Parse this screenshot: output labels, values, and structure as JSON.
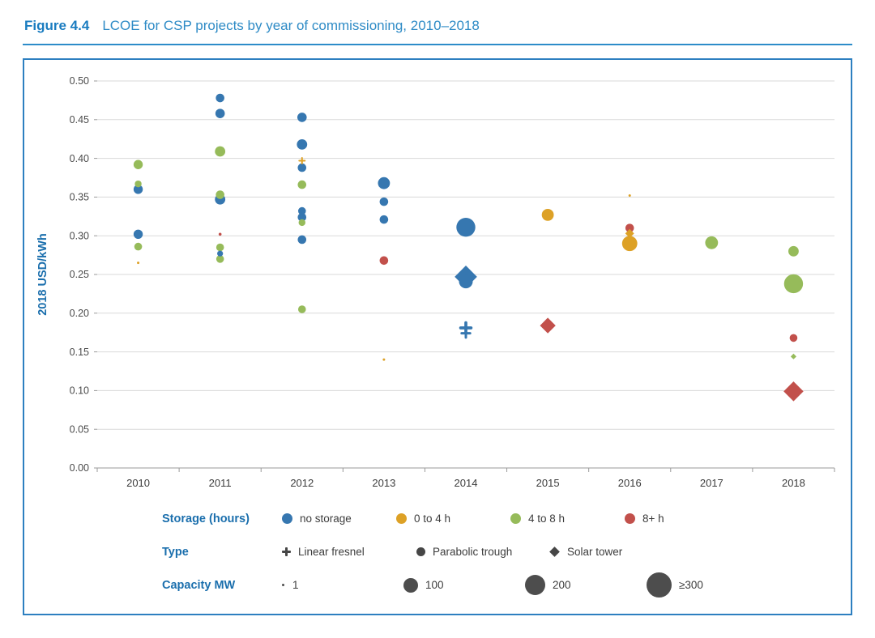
{
  "figure": {
    "label": "Figure 4.4",
    "title": "LCOE for CSP projects by year of commissioning, 2010–2018"
  },
  "colors": {
    "no_storage": "#3677b0",
    "s0to4": "#dda126",
    "s4to8": "#96bb5a",
    "s8plus": "#c2504b",
    "grid": "#dadada",
    "axis": "#9a9a9a",
    "tick_text": "#4a4a4a",
    "axis_label_blue": "#1b6fad",
    "legend_marker_gray": "#464646",
    "border_blue": "#2d7fc0"
  },
  "chart_data": {
    "type": "scatter",
    "title": "LCOE for CSP projects by year of commissioning, 2010–2018",
    "xlabel": "",
    "ylabel": "2018 USD/kWh",
    "ylim": [
      0,
      0.5
    ],
    "ytick_step": 0.05,
    "ytick_labels": [
      "0.00",
      "0.05",
      "0.10",
      "0.15",
      "0.20",
      "0.25",
      "0.30",
      "0.35",
      "0.40",
      "0.45",
      "0.50"
    ],
    "x_categories": [
      2010,
      2011,
      2012,
      2013,
      2014,
      2015,
      2016,
      2017,
      2018
    ],
    "grid": true,
    "legend_position": "bottom",
    "storage_color_keys": {
      "no storage": "no_storage",
      "0 to 4 h": "s0to4",
      "4 to 8 h": "s4to8",
      "8+ h": "s8plus"
    },
    "points": [
      {
        "year": 2010,
        "lcoe": 0.392,
        "storage": "4 to 8 h",
        "type": "parabolic trough",
        "capacity_mw": 40
      },
      {
        "year": 2010,
        "lcoe": 0.367,
        "storage": "4 to 8 h",
        "type": "parabolic trough",
        "capacity_mw": 22
      },
      {
        "year": 2010,
        "lcoe": 0.36,
        "storage": "no storage",
        "type": "parabolic trough",
        "capacity_mw": 40
      },
      {
        "year": 2010,
        "lcoe": 0.302,
        "storage": "no storage",
        "type": "parabolic trough",
        "capacity_mw": 40
      },
      {
        "year": 2010,
        "lcoe": 0.286,
        "storage": "4 to 8 h",
        "type": "parabolic trough",
        "capacity_mw": 28
      },
      {
        "year": 2010,
        "lcoe": 0.265,
        "storage": "0 to 4 h",
        "type": "parabolic trough",
        "capacity_mw": 1
      },
      {
        "year": 2011,
        "lcoe": 0.478,
        "storage": "no storage",
        "type": "parabolic trough",
        "capacity_mw": 35
      },
      {
        "year": 2011,
        "lcoe": 0.458,
        "storage": "no storage",
        "type": "parabolic trough",
        "capacity_mw": 42
      },
      {
        "year": 2011,
        "lcoe": 0.409,
        "storage": "4 to 8 h",
        "type": "parabolic trough",
        "capacity_mw": 50
      },
      {
        "year": 2011,
        "lcoe": 0.353,
        "storage": "4 to 8 h",
        "type": "parabolic trough",
        "capacity_mw": 35
      },
      {
        "year": 2011,
        "lcoe": 0.347,
        "storage": "no storage",
        "type": "parabolic trough",
        "capacity_mw": 50
      },
      {
        "year": 2011,
        "lcoe": 0.302,
        "storage": "8+ h",
        "type": "parabolic trough",
        "capacity_mw": 4
      },
      {
        "year": 2011,
        "lcoe": 0.285,
        "storage": "4 to 8 h",
        "type": "parabolic trough",
        "capacity_mw": 28
      },
      {
        "year": 2011,
        "lcoe": 0.277,
        "storage": "no storage",
        "type": "parabolic trough",
        "capacity_mw": 16
      },
      {
        "year": 2011,
        "lcoe": 0.27,
        "storage": "4 to 8 h",
        "type": "parabolic trough",
        "capacity_mw": 28
      },
      {
        "year": 2012,
        "lcoe": 0.453,
        "storage": "no storage",
        "type": "parabolic trough",
        "capacity_mw": 42
      },
      {
        "year": 2012,
        "lcoe": 0.418,
        "storage": "no storage",
        "type": "parabolic trough",
        "capacity_mw": 50
      },
      {
        "year": 2012,
        "lcoe": 0.397,
        "storage": "0 to 4 h",
        "type": "linear fresnel",
        "capacity_mw": 9
      },
      {
        "year": 2012,
        "lcoe": 0.388,
        "storage": "no storage",
        "type": "parabolic trough",
        "capacity_mw": 35
      },
      {
        "year": 2012,
        "lcoe": 0.366,
        "storage": "4 to 8 h",
        "type": "parabolic trough",
        "capacity_mw": 35
      },
      {
        "year": 2012,
        "lcoe": 0.332,
        "storage": "no storage",
        "type": "parabolic trough",
        "capacity_mw": 28
      },
      {
        "year": 2012,
        "lcoe": 0.324,
        "storage": "no storage",
        "type": "parabolic trough",
        "capacity_mw": 35
      },
      {
        "year": 2012,
        "lcoe": 0.317,
        "storage": "4 to 8 h",
        "type": "parabolic trough",
        "capacity_mw": 22
      },
      {
        "year": 2012,
        "lcoe": 0.295,
        "storage": "no storage",
        "type": "parabolic trough",
        "capacity_mw": 35
      },
      {
        "year": 2012,
        "lcoe": 0.205,
        "storage": "4 to 8 h",
        "type": "parabolic trough",
        "capacity_mw": 28
      },
      {
        "year": 2013,
        "lcoe": 0.368,
        "storage": "no storage",
        "type": "parabolic trough",
        "capacity_mw": 68
      },
      {
        "year": 2013,
        "lcoe": 0.344,
        "storage": "no storage",
        "type": "parabolic trough",
        "capacity_mw": 35
      },
      {
        "year": 2013,
        "lcoe": 0.321,
        "storage": "no storage",
        "type": "parabolic trough",
        "capacity_mw": 35
      },
      {
        "year": 2013,
        "lcoe": 0.268,
        "storage": "8+ h",
        "type": "parabolic trough",
        "capacity_mw": 35
      },
      {
        "year": 2013,
        "lcoe": 0.14,
        "storage": "0 to 4 h",
        "type": "parabolic trough",
        "capacity_mw": 1
      },
      {
        "year": 2014,
        "lcoe": 0.311,
        "storage": "no storage",
        "type": "parabolic trough",
        "capacity_mw": 170
      },
      {
        "year": 2014,
        "lcoe": 0.247,
        "storage": "no storage",
        "type": "solar tower",
        "capacity_mw": 140
      },
      {
        "year": 2014,
        "lcoe": 0.241,
        "storage": "no storage",
        "type": "parabolic trough",
        "capacity_mw": 90
      },
      {
        "year": 2014,
        "lcoe": 0.181,
        "storage": "no storage",
        "type": "linear fresnel",
        "capacity_mw": 30
      },
      {
        "year": 2014,
        "lcoe": 0.174,
        "storage": "no storage",
        "type": "linear fresnel",
        "capacity_mw": 20
      },
      {
        "year": 2015,
        "lcoe": 0.327,
        "storage": "0 to 4 h",
        "type": "parabolic trough",
        "capacity_mw": 68
      },
      {
        "year": 2015,
        "lcoe": 0.184,
        "storage": "8+ h",
        "type": "solar tower",
        "capacity_mw": 68
      },
      {
        "year": 2016,
        "lcoe": 0.352,
        "storage": "0 to 4 h",
        "type": "parabolic trough",
        "capacity_mw": 1
      },
      {
        "year": 2016,
        "lcoe": 0.31,
        "storage": "8+ h",
        "type": "parabolic trough",
        "capacity_mw": 35
      },
      {
        "year": 2016,
        "lcoe": 0.303,
        "storage": "0 to 4 h",
        "type": "solar tower",
        "capacity_mw": 22
      },
      {
        "year": 2016,
        "lcoe": 0.29,
        "storage": "0 to 4 h",
        "type": "parabolic trough",
        "capacity_mw": 110
      },
      {
        "year": 2017,
        "lcoe": 0.291,
        "storage": "4 to 8 h",
        "type": "parabolic trough",
        "capacity_mw": 78
      },
      {
        "year": 2018,
        "lcoe": 0.28,
        "storage": "4 to 8 h",
        "type": "parabolic trough",
        "capacity_mw": 50
      },
      {
        "year": 2018,
        "lcoe": 0.238,
        "storage": "4 to 8 h",
        "type": "parabolic trough",
        "capacity_mw": 170
      },
      {
        "year": 2018,
        "lcoe": 0.168,
        "storage": "8+ h",
        "type": "parabolic trough",
        "capacity_mw": 28
      },
      {
        "year": 2018,
        "lcoe": 0.144,
        "storage": "4 to 8 h",
        "type": "solar tower",
        "capacity_mw": 9
      },
      {
        "year": 2018,
        "lcoe": 0.099,
        "storage": "8+ h",
        "type": "solar tower",
        "capacity_mw": 110
      }
    ]
  },
  "legend": {
    "storage": {
      "label": "Storage (hours)",
      "items": [
        {
          "name": "no storage",
          "color_key": "no_storage"
        },
        {
          "name": "0 to 4 h",
          "color_key": "s0to4"
        },
        {
          "name": "4 to 8 h",
          "color_key": "s4to8"
        },
        {
          "name": "8+ h",
          "color_key": "s8plus"
        }
      ]
    },
    "type": {
      "label": "Type",
      "items": [
        {
          "name": "Linear fresnel",
          "shape": "plus"
        },
        {
          "name": "Parabolic trough",
          "shape": "circle"
        },
        {
          "name": "Solar tower",
          "shape": "diamond"
        }
      ]
    },
    "capacity": {
      "label": "Capacity MW",
      "items": [
        {
          "name": "1",
          "size_mw": 1
        },
        {
          "name": "100",
          "size_mw": 100
        },
        {
          "name": "200",
          "size_mw": 200
        },
        {
          "name": "≥300",
          "size_mw": 300
        }
      ]
    }
  }
}
